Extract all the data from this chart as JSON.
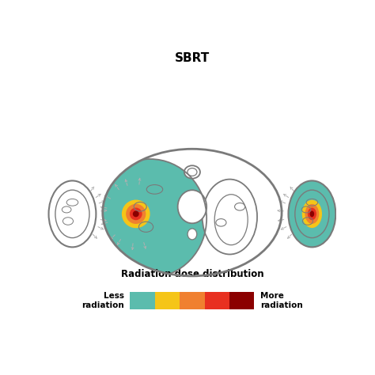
{
  "title": "SBRT",
  "title_fontsize": 11,
  "title_fontweight": "bold",
  "background_color": "#ffffff",
  "teal_color": "#5bbcad",
  "yellow_color": "#f5c518",
  "orange_color": "#f08030",
  "red_color": "#e83020",
  "dark_red_color": "#8b0000",
  "outline_color": "#7a7a7a",
  "arrow_color": "#b0b0b0",
  "legend_title": "Radiation dose distribution",
  "legend_left_label": "Less\nradiation",
  "legend_right_label": "More\nradiation",
  "legend_colors": [
    "#5bbcad",
    "#f5c518",
    "#f08030",
    "#e83020",
    "#8b0000"
  ],
  "fig_width": 4.74,
  "fig_height": 4.74,
  "dpi": 100
}
